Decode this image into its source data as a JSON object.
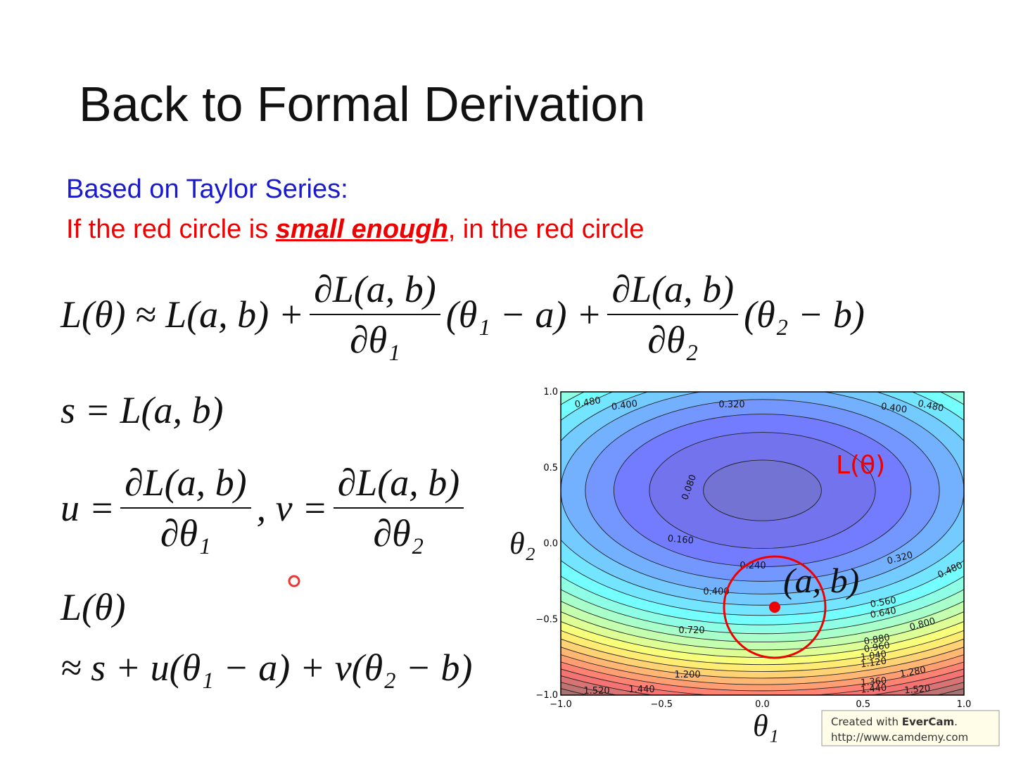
{
  "title": "Back to Formal Derivation",
  "intro": {
    "line1": "Based on Taylor Series:",
    "line2_before": "If the red circle is ",
    "line2_emphasis": "small enough",
    "line2_after": ", in the red circle"
  },
  "equations": {
    "eq1": {
      "lhs": "L(θ) ≈ L(a, b) +",
      "frac1": {
        "num": "∂L(a, b)",
        "den": "∂θ₁"
      },
      "mid": "(θ₁ − a) +",
      "frac2": {
        "num": "∂L(a, b)",
        "den": "∂θ₂"
      },
      "tail": "(θ₂ − b)"
    },
    "eq2": "s = L(a, b)",
    "eq3": {
      "u": "u =",
      "frac1": {
        "num": "∂L(a, b)",
        "den": "∂θ₁"
      },
      "sep": ", v =",
      "frac2": {
        "num": "∂L(a, b)",
        "den": "∂θ₂"
      }
    },
    "eq4": {
      "line1": "L(θ)",
      "line2": "≈ s + u(θ₁ − a) + v(θ₂ − b)"
    }
  },
  "plot": {
    "y_axis_label": "θ₂",
    "x_axis_label": "θ₁",
    "xticks": [
      "−1.0",
      "−0.5",
      "0.0",
      "0.5",
      "1.0"
    ],
    "yticks": [
      "1.0",
      "0.5",
      "0.0",
      "−0.5",
      "−1.0"
    ],
    "contour_labels": [
      "0.480",
      "0.400",
      "0.320",
      "0.400",
      "0.480",
      "0.080",
      "0.160",
      "0.240",
      "0.320",
      "0.400",
      "0.480",
      "0.560",
      "0.640",
      "0.720",
      "0.800",
      "0.880",
      "0.960",
      "1.040",
      "1.120",
      "1.200",
      "1.280",
      "1.360",
      "1.440",
      "1.520",
      "1.520",
      "1.440"
    ],
    "curve_label": "L(θ)",
    "point_label": "(a, b)"
  },
  "watermark": {
    "line1_before": "Created with ",
    "line1_brand": "EverCam",
    "line1_after": ".",
    "line2": "http://www.camdemy.com"
  }
}
